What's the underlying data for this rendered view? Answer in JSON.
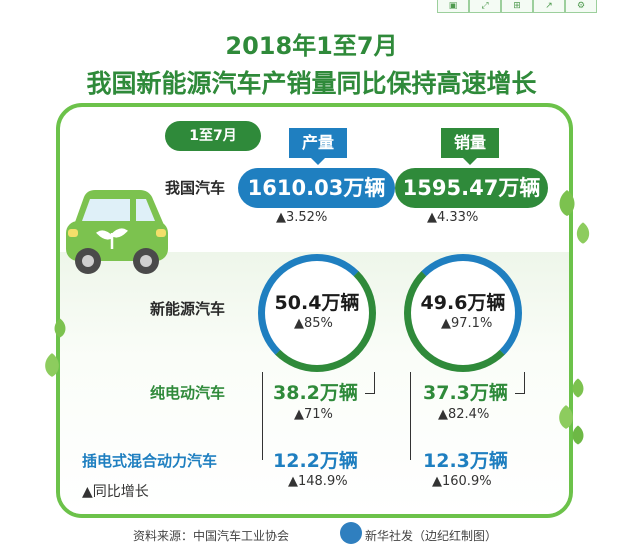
{
  "toolbar": [
    "▣",
    "⤢",
    "⊞",
    "↗",
    "⚙"
  ],
  "title_line1": "2018年1至7月",
  "title_line2": "我国新能源汽车产销量同比保持高速增长",
  "period": "1至7月",
  "columns": {
    "production": "产量",
    "sales": "销量"
  },
  "rows": {
    "all": {
      "label": "我国汽车",
      "production": "1610.03万辆",
      "production_change": "▲3.52%",
      "sales": "1595.47万辆",
      "sales_change": "▲4.33%"
    },
    "nev": {
      "label": "新能源汽车",
      "production": "50.4万辆",
      "production_change": "▲85%",
      "sales": "49.6万辆",
      "sales_change": "▲97.1%"
    },
    "bev": {
      "label": "纯电动汽车",
      "production": "38.2万辆",
      "production_change": "▲71%",
      "sales": "37.3万辆",
      "sales_change": "▲82.4%"
    },
    "phev": {
      "label": "插电式混合动力汽车",
      "production": "12.2万辆",
      "production_change": "▲148.9%",
      "sales": "12.3万辆",
      "sales_change": "▲160.9%"
    }
  },
  "legend": "▲同比增长",
  "source": "资料来源：中国汽车工业协会",
  "credit": "新华社发（边纪红制图）",
  "colors": {
    "green": "#2f8a3a",
    "blue": "#1f7fc0",
    "frame": "#6cc24a"
  }
}
